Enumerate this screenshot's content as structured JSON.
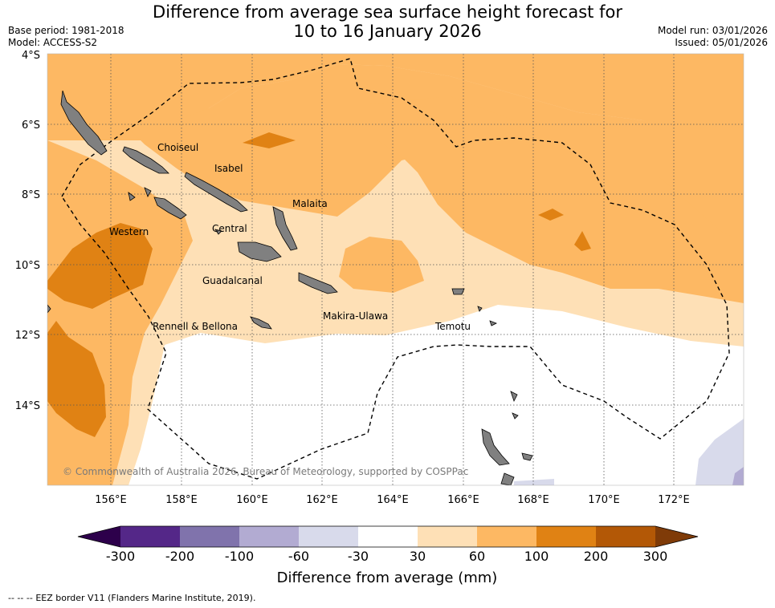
{
  "title": {
    "line1": "Difference from average sea surface height forecast for",
    "line2": "10 to 16 January 2026"
  },
  "meta": {
    "base_period": "Base period: 1981-2018",
    "model": "Model: ACCESS-S2",
    "model_run": "Model run: 03/01/2026",
    "issued": "Issued: 05/01/2026"
  },
  "axes": {
    "lat_labels": [
      "4°S",
      "6°S",
      "8°S",
      "10°S",
      "12°S",
      "14°S"
    ],
    "lon_labels": [
      "156°E",
      "158°E",
      "160°E",
      "162°E",
      "164°E",
      "166°E",
      "168°E",
      "170°E",
      "172°E"
    ]
  },
  "places": [
    "Choiseul",
    "Isabel",
    "Malaita",
    "Western",
    "Central",
    "Guadalcanal",
    "Makira-Ulawa",
    "Rennell & Bellona",
    "Temotu"
  ],
  "copyright": "© Commonwealth of Australia 2026, Bureau of Meteorology, supported by COSPPac",
  "colorbar": {
    "ticks": [
      "-300",
      "-200",
      "-100",
      "-60",
      "-30",
      "30",
      "60",
      "100",
      "200",
      "300"
    ],
    "colors": [
      "#542788",
      "#8073ac",
      "#b2abd2",
      "#d8daeb",
      "#ffffff",
      "#fee0b6",
      "#fdb863",
      "#e08214",
      "#b35806"
    ],
    "under_color": "#2d004b",
    "over_color": "#7f3b08",
    "label": "Difference from average (mm)"
  },
  "legend": {
    "eez_symbol": "--  --  --",
    "eez_text": "EEZ border V11 (Flanders Marine Institute, 2019)."
  }
}
